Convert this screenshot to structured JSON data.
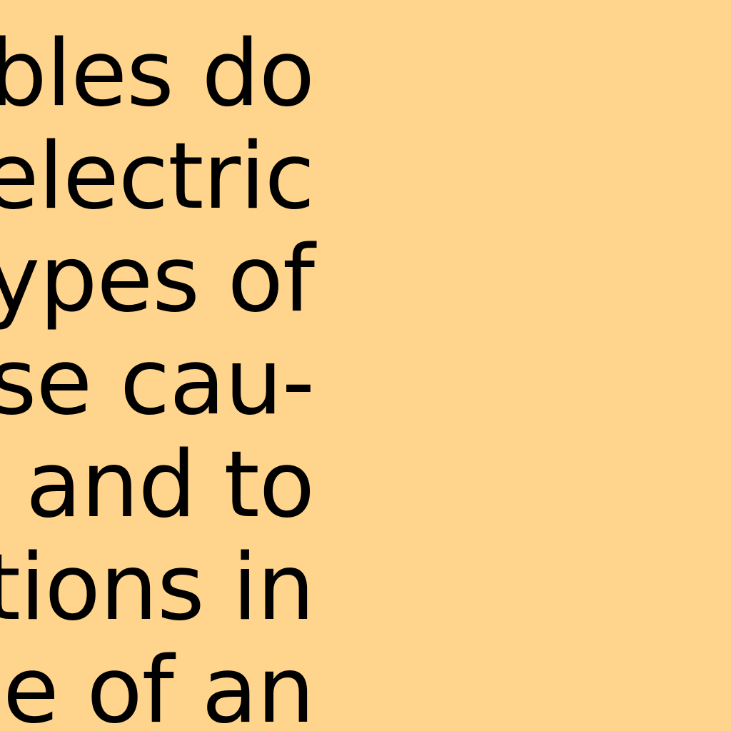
{
  "document": {
    "lines": [
      "bles do",
      "electric",
      "ypes of",
      "se cau-",
      "s and to",
      "tions in",
      "ce of an"
    ]
  },
  "colors": {
    "background": "#ffd48c",
    "text": "#000000"
  }
}
